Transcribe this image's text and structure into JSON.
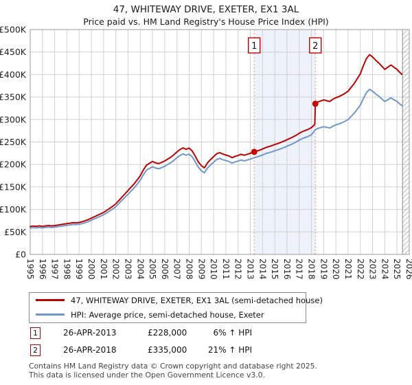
{
  "header": {
    "title": "47, WHITEWAY DRIVE, EXETER, EX1 3AL",
    "subtitle": "Price paid vs. HM Land Registry's House Price Index (HPI)"
  },
  "colors": {
    "property_line": "#bb0000",
    "hpi_line": "#7096c8",
    "grid": "#d0d0d0",
    "plot_border": "#999999",
    "event_line": "#ff8080",
    "shade": "#eef2fb",
    "hatch": "#bbbbbb",
    "marker_fill": "#cc0000"
  },
  "chart_data": {
    "type": "line",
    "title": "47, WHITEWAY DRIVE, EXETER, EX1 3AL",
    "xlabel": "",
    "ylabel": "",
    "x_ticks": [
      1995,
      1996,
      1997,
      1998,
      1999,
      2000,
      2001,
      2002,
      2003,
      2004,
      2005,
      2006,
      2007,
      2008,
      2009,
      2010,
      2011,
      2012,
      2013,
      2014,
      2015,
      2016,
      2017,
      2018,
      2019,
      2020,
      2021,
      2022,
      2023,
      2024,
      2025,
      2026
    ],
    "y_ticks": [
      {
        "value": 0,
        "label": "£0"
      },
      {
        "value": 50000,
        "label": "£50K"
      },
      {
        "value": 100000,
        "label": "£100K"
      },
      {
        "value": 150000,
        "label": "£150K"
      },
      {
        "value": 200000,
        "label": "£200K"
      },
      {
        "value": 250000,
        "label": "£250K"
      },
      {
        "value": 300000,
        "label": "£300K"
      },
      {
        "value": 350000,
        "label": "£350K"
      },
      {
        "value": 400000,
        "label": "£400K"
      },
      {
        "value": 450000,
        "label": "£450K"
      },
      {
        "value": 500000,
        "label": "£500K"
      }
    ],
    "x_range": [
      1995,
      2026
    ],
    "y_range": [
      0,
      500000
    ],
    "grid": true,
    "shaded_region": {
      "from": 2013.32,
      "to": 2018.32
    },
    "hatch_from": 2025.45,
    "event_lines": [
      {
        "label": "1",
        "x": 2013.32
      },
      {
        "label": "2",
        "x": 2018.32
      }
    ],
    "sale_markers": [
      {
        "label": "1",
        "x": 2013.32,
        "y": 228000
      },
      {
        "label": "2",
        "x": 2018.32,
        "y": 335000
      }
    ],
    "series": [
      {
        "name": "47, WHITEWAY DRIVE, EXETER, EX1 3AL (semi-detached house)",
        "color": "#bb0000",
        "points": [
          [
            1995.0,
            62000
          ],
          [
            1995.25,
            63100
          ],
          [
            1995.5,
            62300
          ],
          [
            1995.75,
            63400
          ],
          [
            1996.0,
            62300
          ],
          [
            1996.25,
            63400
          ],
          [
            1996.5,
            64100
          ],
          [
            1996.75,
            63400
          ],
          [
            1997.0,
            64100
          ],
          [
            1997.25,
            65200
          ],
          [
            1997.5,
            66300
          ],
          [
            1997.75,
            67300
          ],
          [
            1998.0,
            68400
          ],
          [
            1998.25,
            69400
          ],
          [
            1998.5,
            70500
          ],
          [
            1998.75,
            70000
          ],
          [
            1999.0,
            71000
          ],
          [
            1999.25,
            72600
          ],
          [
            1999.5,
            74700
          ],
          [
            1999.75,
            77400
          ],
          [
            2000.0,
            80600
          ],
          [
            2000.25,
            83700
          ],
          [
            2000.5,
            86900
          ],
          [
            2000.75,
            90100
          ],
          [
            2001.0,
            93300
          ],
          [
            2001.25,
            97500
          ],
          [
            2001.5,
            102300
          ],
          [
            2001.75,
            107100
          ],
          [
            2002.0,
            112400
          ],
          [
            2002.25,
            119800
          ],
          [
            2002.5,
            127200
          ],
          [
            2002.75,
            134600
          ],
          [
            2003.0,
            142000
          ],
          [
            2003.25,
            149500
          ],
          [
            2003.5,
            156900
          ],
          [
            2003.75,
            165400
          ],
          [
            2004.0,
            174900
          ],
          [
            2004.25,
            187600
          ],
          [
            2004.5,
            198200
          ],
          [
            2004.75,
            202500
          ],
          [
            2005.0,
            206700
          ],
          [
            2005.25,
            203500
          ],
          [
            2005.5,
            201900
          ],
          [
            2005.75,
            204600
          ],
          [
            2006.0,
            207800
          ],
          [
            2006.25,
            212000
          ],
          [
            2006.5,
            216200
          ],
          [
            2006.75,
            221500
          ],
          [
            2007.0,
            227900
          ],
          [
            2007.25,
            233200
          ],
          [
            2007.5,
            236900
          ],
          [
            2007.75,
            233700
          ],
          [
            2008.0,
            236400
          ],
          [
            2008.25,
            230000
          ],
          [
            2008.5,
            218400
          ],
          [
            2008.75,
            205600
          ],
          [
            2009.0,
            197200
          ],
          [
            2009.25,
            192400
          ],
          [
            2009.5,
            203500
          ],
          [
            2009.75,
            210900
          ],
          [
            2010.0,
            217300
          ],
          [
            2010.25,
            223700
          ],
          [
            2010.5,
            226300
          ],
          [
            2010.75,
            223100
          ],
          [
            2011.0,
            221000
          ],
          [
            2011.25,
            218900
          ],
          [
            2011.5,
            215200
          ],
          [
            2011.75,
            217800
          ],
          [
            2012.0,
            220000
          ],
          [
            2012.25,
            222600
          ],
          [
            2012.5,
            220500
          ],
          [
            2012.75,
            222600
          ],
          [
            2013.0,
            224700
          ],
          [
            2013.32,
            228000
          ],
          [
            2013.5,
            229500
          ],
          [
            2013.75,
            231600
          ],
          [
            2014.0,
            234300
          ],
          [
            2014.25,
            237400
          ],
          [
            2014.5,
            239600
          ],
          [
            2014.75,
            241700
          ],
          [
            2015.0,
            244300
          ],
          [
            2015.25,
            246500
          ],
          [
            2015.5,
            249100
          ],
          [
            2015.75,
            251800
          ],
          [
            2016.0,
            254900
          ],
          [
            2016.25,
            258100
          ],
          [
            2016.5,
            261300
          ],
          [
            2016.75,
            265000
          ],
          [
            2017.0,
            269200
          ],
          [
            2017.25,
            273000
          ],
          [
            2017.5,
            275600
          ],
          [
            2017.75,
            278300
          ],
          [
            2018.0,
            282000
          ],
          [
            2018.28,
            289000
          ],
          [
            2018.32,
            335000
          ],
          [
            2018.5,
            338800
          ],
          [
            2018.75,
            341200
          ],
          [
            2019.0,
            343600
          ],
          [
            2019.25,
            341800
          ],
          [
            2019.5,
            340000
          ],
          [
            2019.75,
            344900
          ],
          [
            2020.0,
            348500
          ],
          [
            2020.25,
            350900
          ],
          [
            2020.5,
            354500
          ],
          [
            2020.75,
            358200
          ],
          [
            2021.0,
            363000
          ],
          [
            2021.25,
            371500
          ],
          [
            2021.5,
            380000
          ],
          [
            2021.75,
            390800
          ],
          [
            2022.0,
            401700
          ],
          [
            2022.25,
            419900
          ],
          [
            2022.5,
            435600
          ],
          [
            2022.75,
            444100
          ],
          [
            2023.0,
            439200
          ],
          [
            2023.25,
            432000
          ],
          [
            2023.5,
            425900
          ],
          [
            2023.75,
            418700
          ],
          [
            2024.0,
            411400
          ],
          [
            2024.25,
            416200
          ],
          [
            2024.5,
            421100
          ],
          [
            2024.75,
            416200
          ],
          [
            2025.0,
            411400
          ],
          [
            2025.2,
            405400
          ],
          [
            2025.4,
            400500
          ]
        ]
      },
      {
        "name": "HPI: Average price, semi-detached house, Exeter",
        "color": "#7096c8",
        "points": [
          [
            1995.0,
            58500
          ],
          [
            1995.25,
            59500
          ],
          [
            1995.5,
            58800
          ],
          [
            1995.75,
            59800
          ],
          [
            1996.0,
            58800
          ],
          [
            1996.25,
            59800
          ],
          [
            1996.5,
            60500
          ],
          [
            1996.75,
            59800
          ],
          [
            1997.0,
            60500
          ],
          [
            1997.25,
            61500
          ],
          [
            1997.5,
            62500
          ],
          [
            1997.75,
            63500
          ],
          [
            1998.0,
            64500
          ],
          [
            1998.25,
            65500
          ],
          [
            1998.5,
            66500
          ],
          [
            1998.75,
            66000
          ],
          [
            1999.0,
            67000
          ],
          [
            1999.25,
            68500
          ],
          [
            1999.5,
            70500
          ],
          [
            1999.75,
            73000
          ],
          [
            2000.0,
            76000
          ],
          [
            2000.25,
            79000
          ],
          [
            2000.5,
            82000
          ],
          [
            2000.75,
            85000
          ],
          [
            2001.0,
            88000
          ],
          [
            2001.25,
            92000
          ],
          [
            2001.5,
            96500
          ],
          [
            2001.75,
            101000
          ],
          [
            2002.0,
            106000
          ],
          [
            2002.25,
            113000
          ],
          [
            2002.5,
            120000
          ],
          [
            2002.75,
            127000
          ],
          [
            2003.0,
            134000
          ],
          [
            2003.25,
            141000
          ],
          [
            2003.5,
            148000
          ],
          [
            2003.75,
            156000
          ],
          [
            2004.0,
            165000
          ],
          [
            2004.25,
            177000
          ],
          [
            2004.5,
            187000
          ],
          [
            2004.75,
            191000
          ],
          [
            2005.0,
            195000
          ],
          [
            2005.25,
            192000
          ],
          [
            2005.5,
            190500
          ],
          [
            2005.75,
            193000
          ],
          [
            2006.0,
            196000
          ],
          [
            2006.25,
            200000
          ],
          [
            2006.5,
            204000
          ],
          [
            2006.75,
            209000
          ],
          [
            2007.0,
            215000
          ],
          [
            2007.25,
            220000
          ],
          [
            2007.5,
            223500
          ],
          [
            2007.75,
            220500
          ],
          [
            2008.0,
            223000
          ],
          [
            2008.25,
            217000
          ],
          [
            2008.5,
            206000
          ],
          [
            2008.75,
            194000
          ],
          [
            2009.0,
            186000
          ],
          [
            2009.25,
            181500
          ],
          [
            2009.5,
            192000
          ],
          [
            2009.75,
            199000
          ],
          [
            2010.0,
            205000
          ],
          [
            2010.25,
            211000
          ],
          [
            2010.5,
            213500
          ],
          [
            2010.75,
            210500
          ],
          [
            2011.0,
            208500
          ],
          [
            2011.25,
            206500
          ],
          [
            2011.5,
            203000
          ],
          [
            2011.75,
            205500
          ],
          [
            2012.0,
            207500
          ],
          [
            2012.25,
            210000
          ],
          [
            2012.5,
            208000
          ],
          [
            2012.75,
            210000
          ],
          [
            2013.0,
            212000
          ],
          [
            2013.32,
            215000
          ],
          [
            2013.5,
            216500
          ],
          [
            2013.75,
            218500
          ],
          [
            2014.0,
            221000
          ],
          [
            2014.25,
            224000
          ],
          [
            2014.5,
            226000
          ],
          [
            2014.75,
            228000
          ],
          [
            2015.0,
            230500
          ],
          [
            2015.25,
            232500
          ],
          [
            2015.5,
            235000
          ],
          [
            2015.75,
            237500
          ],
          [
            2016.0,
            240500
          ],
          [
            2016.25,
            243500
          ],
          [
            2016.5,
            246500
          ],
          [
            2016.75,
            250000
          ],
          [
            2017.0,
            254000
          ],
          [
            2017.25,
            257500
          ],
          [
            2017.5,
            260000
          ],
          [
            2017.75,
            262500
          ],
          [
            2018.0,
            266000
          ],
          [
            2018.32,
            277000
          ],
          [
            2018.5,
            280000
          ],
          [
            2018.75,
            282000
          ],
          [
            2019.0,
            284000
          ],
          [
            2019.25,
            282500
          ],
          [
            2019.5,
            281000
          ],
          [
            2019.75,
            285000
          ],
          [
            2020.0,
            288000
          ],
          [
            2020.25,
            290000
          ],
          [
            2020.5,
            293000
          ],
          [
            2020.75,
            296000
          ],
          [
            2021.0,
            300000
          ],
          [
            2021.25,
            307000
          ],
          [
            2021.5,
            314000
          ],
          [
            2021.75,
            323000
          ],
          [
            2022.0,
            332000
          ],
          [
            2022.25,
            347000
          ],
          [
            2022.5,
            360000
          ],
          [
            2022.75,
            367000
          ],
          [
            2023.0,
            363000
          ],
          [
            2023.25,
            357000
          ],
          [
            2023.5,
            352000
          ],
          [
            2023.75,
            346000
          ],
          [
            2024.0,
            340000
          ],
          [
            2024.25,
            344000
          ],
          [
            2024.5,
            348000
          ],
          [
            2024.75,
            344000
          ],
          [
            2025.0,
            340000
          ],
          [
            2025.2,
            335000
          ],
          [
            2025.4,
            331000
          ]
        ]
      }
    ],
    "legend_position": "bottom"
  },
  "legend": {
    "items": [
      {
        "label": "47, WHITEWAY DRIVE, EXETER, EX1 3AL (semi-detached house)",
        "color": "#bb0000"
      },
      {
        "label": "HPI: Average price, semi-detached house, Exeter",
        "color": "#7096c8"
      }
    ]
  },
  "transactions": [
    {
      "num": "1",
      "date": "26-APR-2013",
      "price": "£228,000",
      "hpi_delta": "6% ↑ HPI"
    },
    {
      "num": "2",
      "date": "26-APR-2018",
      "price": "£335,000",
      "hpi_delta": "21% ↑ HPI"
    }
  ],
  "footer": {
    "line1": "Contains HM Land Registry data © Crown copyright and database right 2025.",
    "line2": "This data is licensed under the Open Government Licence v3.0."
  }
}
